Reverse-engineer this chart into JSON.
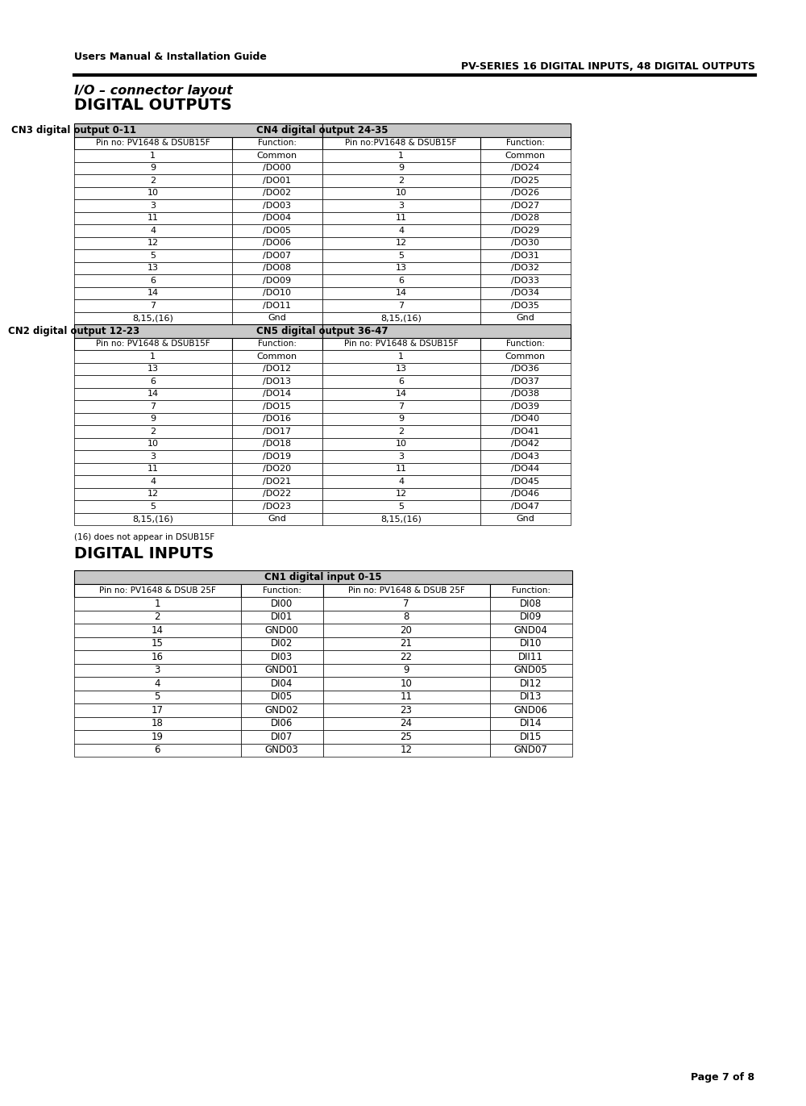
{
  "header_left": "Users Manual & Installation Guide",
  "header_right": "PV-SERIES 16 DIGITAL INPUTS, 48 DIGITAL OUTPUTS",
  "section1_title": "I/O – connector layout",
  "section1_subtitle": "DIGITAL OUTPUTS",
  "section2_title": "DIGITAL INPUTS",
  "footnote": "(16) does not appear in DSUB15F",
  "footer": "Page 7 of 8",
  "do_table": {
    "cn3_header": "CN3 digital output 0-11",
    "cn4_header": "CN4 digital output 24-35",
    "cn2_header": "CN2 digital output 12-23",
    "cn5_header": "CN5 digital output 36-47",
    "col_headers_top": [
      "Pin no: PV1648 & DSUB15F",
      "Function:",
      "Pin no:PV1648 & DSUB15F",
      "Function:"
    ],
    "col_headers_bot": [
      "Pin no: PV1648 & DSUB15F",
      "Function:",
      "Pin no: PV1648 & DSUB15F",
      "Function:"
    ],
    "top_rows": [
      [
        "1",
        "Common",
        "1",
        "Common"
      ],
      [
        "9",
        "/DO00",
        "9",
        "/DO24"
      ],
      [
        "2",
        "/DO01",
        "2",
        "/DO25"
      ],
      [
        "10",
        "/DO02",
        "10",
        "/DO26"
      ],
      [
        "3",
        "/DO03",
        "3",
        "/DO27"
      ],
      [
        "11",
        "/DO04",
        "11",
        "/DO28"
      ],
      [
        "4",
        "/DO05",
        "4",
        "/DO29"
      ],
      [
        "12",
        "/DO06",
        "12",
        "/DO30"
      ],
      [
        "5",
        "/DO07",
        "5",
        "/DO31"
      ],
      [
        "13",
        "/DO08",
        "13",
        "/DO32"
      ],
      [
        "6",
        "/DO09",
        "6",
        "/DO33"
      ],
      [
        "14",
        "/DO10",
        "14",
        "/DO34"
      ],
      [
        "7",
        "/DO11",
        "7",
        "/DO35"
      ],
      [
        "8,15,(16)",
        "Gnd",
        "8,15,(16)",
        "Gnd"
      ]
    ],
    "bottom_rows": [
      [
        "1",
        "Common",
        "1",
        "Common"
      ],
      [
        "13",
        "/DO12",
        "13",
        "/DO36"
      ],
      [
        "6",
        "/DO13",
        "6",
        "/DO37"
      ],
      [
        "14",
        "/DO14",
        "14",
        "/DO38"
      ],
      [
        "7",
        "/DO15",
        "7",
        "/DO39"
      ],
      [
        "9",
        "/DO16",
        "9",
        "/DO40"
      ],
      [
        "2",
        "/DO17",
        "2",
        "/DO41"
      ],
      [
        "10",
        "/DO18",
        "10",
        "/DO42"
      ],
      [
        "3",
        "/DO19",
        "3",
        "/DO43"
      ],
      [
        "11",
        "/DO20",
        "11",
        "/DO44"
      ],
      [
        "4",
        "/DO21",
        "4",
        "/DO45"
      ],
      [
        "12",
        "/DO22",
        "12",
        "/DO46"
      ],
      [
        "5",
        "/DO23",
        "5",
        "/DO47"
      ],
      [
        "8,15,(16)",
        "Gnd",
        "8,15,(16)",
        "Gnd"
      ]
    ]
  },
  "di_table": {
    "cn1_header": "CN1 digital input 0-15",
    "col_headers": [
      "Pin no: PV1648 & DSUB 25F",
      "Function:",
      "Pin no: PV1648 & DSUB 25F",
      "Function:"
    ],
    "rows": [
      [
        "1",
        "DI00",
        "7",
        "DI08"
      ],
      [
        "2",
        "DI01",
        "8",
        "DI09"
      ],
      [
        "14",
        "GND00",
        "20",
        "GND04"
      ],
      [
        "15",
        "DI02",
        "21",
        "DI10"
      ],
      [
        "16",
        "DI03",
        "22",
        "DII11"
      ],
      [
        "3",
        "GND01",
        "9",
        "GND05"
      ],
      [
        "4",
        "DI04",
        "10",
        "DI12"
      ],
      [
        "5",
        "DI05",
        "11",
        "DI13"
      ],
      [
        "17",
        "GND02",
        "23",
        "GND06"
      ],
      [
        "18",
        "DI06",
        "24",
        "DI14"
      ],
      [
        "19",
        "DI07",
        "25",
        "DI15"
      ],
      [
        "6",
        "GND03",
        "12",
        "GND07"
      ]
    ]
  }
}
